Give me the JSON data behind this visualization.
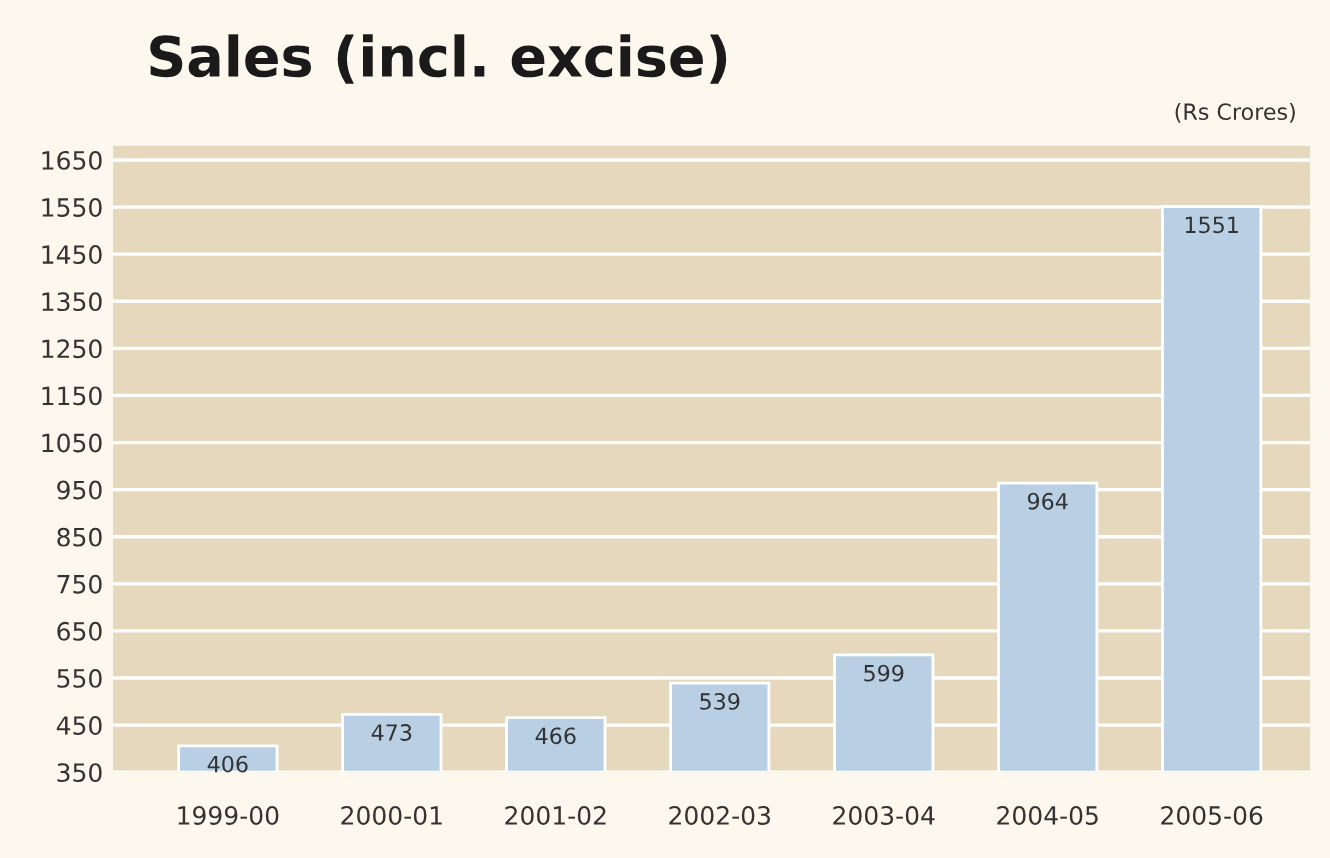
{
  "chart_data": {
    "type": "bar",
    "title": "Sales (incl. excise)",
    "annotations": [
      "(Rs Crores)"
    ],
    "categories": [
      "1999-00",
      "2000-01",
      "2001-02",
      "2002-03",
      "2003-04",
      "2004-05",
      "2005-06"
    ],
    "values": [
      406,
      473,
      466,
      539,
      599,
      964,
      1551
    ],
    "color": "#b8cfe4",
    "ylim": [
      350,
      1680
    ],
    "yticks": [
      350,
      450,
      550,
      650,
      750,
      850,
      950,
      1050,
      1150,
      1250,
      1350,
      1450,
      1550,
      1650
    ],
    "grid": "y",
    "data_labels": true
  }
}
